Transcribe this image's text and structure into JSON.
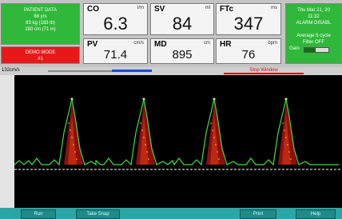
{
  "patient": {
    "title": "PATIENT DATA",
    "lines": [
      "68 yrs",
      "83 kg (183 lb)",
      "180 cm (71 in)"
    ]
  },
  "mode": {
    "title": "DEMO MODE",
    "id": "#1"
  },
  "tiles": [
    {
      "label": "CO",
      "unit": "l/m",
      "value": 6.3
    },
    {
      "label": "SV",
      "unit": "ml",
      "value": 84
    },
    {
      "label": "FTc",
      "unit": "ms",
      "value": 347
    },
    {
      "label": "PV",
      "unit": "cm/s",
      "value": 71.4
    },
    {
      "label": "MD",
      "unit": "cm",
      "value": 895
    },
    {
      "label": "HR",
      "unit": "bpm",
      "value": 76
    }
  ],
  "status": {
    "lines": [
      "Thu Mar 21, 20",
      "11:32",
      "ALARM DISABL"
    ],
    "settings": [
      "Average 5 cycle",
      "Filter OFF"
    ],
    "gain": "Gain"
  },
  "scale": "132cm/s",
  "stop": "Stop Window",
  "buttons": [
    "Run",
    "Take Snap",
    "Print",
    "Help"
  ]
}
